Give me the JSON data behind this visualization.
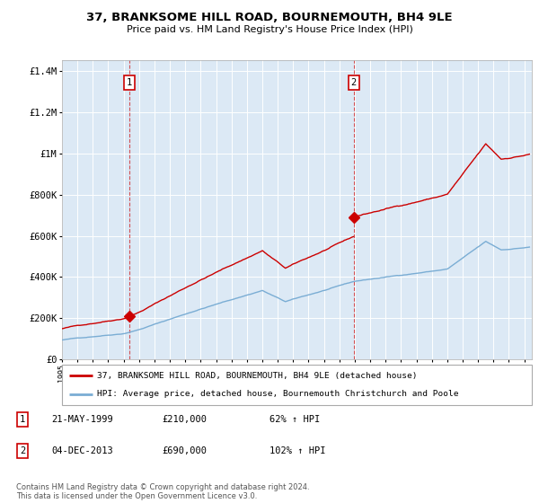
{
  "title1": "37, BRANKSOME HILL ROAD, BOURNEMOUTH, BH4 9LE",
  "title2": "Price paid vs. HM Land Registry's House Price Index (HPI)",
  "bg_color": "#dce9f5",
  "red_line_color": "#cc0000",
  "blue_line_color": "#7aadd4",
  "sale1_date_num": 1999.388,
  "sale1_price": 210000,
  "sale2_date_num": 2013.921,
  "sale2_price": 690000,
  "ylabel_ticks": [
    0,
    200000,
    400000,
    600000,
    800000,
    1000000,
    1200000,
    1400000
  ],
  "ylabel_labels": [
    "£0",
    "£200K",
    "£400K",
    "£600K",
    "£800K",
    "£1M",
    "£1.2M",
    "£1.4M"
  ],
  "legend1": "37, BRANKSOME HILL ROAD, BOURNEMOUTH, BH4 9LE (detached house)",
  "legend2": "HPI: Average price, detached house, Bournemouth Christchurch and Poole",
  "table_rows": [
    [
      "1",
      "21-MAY-1999",
      "£210,000",
      "62% ↑ HPI"
    ],
    [
      "2",
      "04-DEC-2013",
      "£690,000",
      "102% ↑ HPI"
    ]
  ],
  "footnote": "Contains HM Land Registry data © Crown copyright and database right 2024.\nThis data is licensed under the Open Government Licence v3.0.",
  "xmin": 1995.0,
  "xmax": 2025.5,
  "ymin": 0,
  "ymax": 1450000
}
